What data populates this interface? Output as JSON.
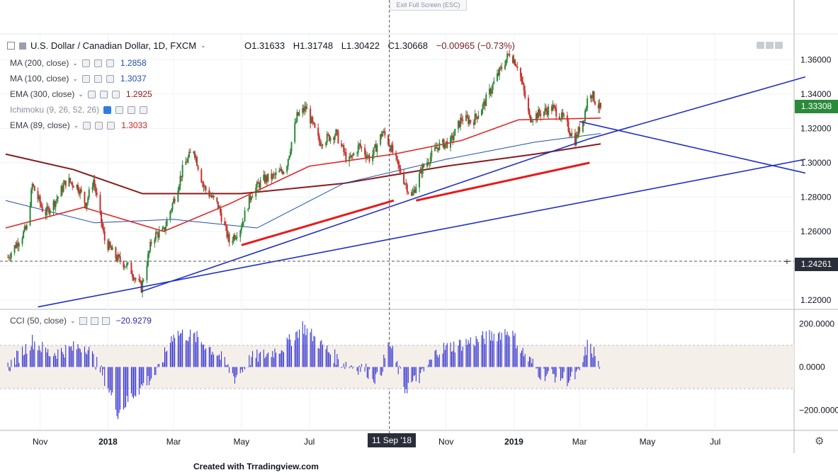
{
  "exit_label": "Exit Full Screen (ESC)",
  "header": {
    "symbol": "U.S. Dollar / Canadian Dollar, 1D, FXCM",
    "open": "O1.31633",
    "high": "H1.31748",
    "low": "L1.30422",
    "close": "C1.30668",
    "change": "−0.00965 (−0.73%)"
  },
  "studies": [
    {
      "name": "MA (200, close)",
      "value": "1.2858",
      "color": "#1f4fb0"
    },
    {
      "name": "MA (100, close)",
      "value": "1.3037",
      "color": "#1f4fb0"
    },
    {
      "name": "EMA (300, close)",
      "value": "1.2925",
      "color": "#8b1a1a"
    },
    {
      "name": "Ichimoku (9, 26, 52, 26)",
      "value": "",
      "color": "#1f4fb0"
    },
    {
      "name": "EMA (89, close)",
      "value": "1.3033",
      "color": "#d42020"
    }
  ],
  "cci": {
    "name": "CCI (50, close)",
    "value": "−20.9279",
    "color": "#2a2aa8"
  },
  "price_tags": {
    "last": "1.33308",
    "cursor": "1.24261"
  },
  "crosshair_date": "11 Sep '18",
  "footer": "Created with Trradingview.com",
  "colors": {
    "up": "#2a8a3a",
    "down": "#c9302c",
    "ma_blue": "#1f4fb0",
    "ema_red": "#e52222",
    "ema_dark": "#8b1a1a",
    "trend_blue": "#1f2fc8",
    "cci": "#2a2ad0"
  },
  "chart_data": {
    "type": "candlestick",
    "title": "U.S. Dollar / Canadian Dollar, 1D, FXCM",
    "x_ticks": [
      "Nov",
      "2018",
      "Mar",
      "May",
      "Jul",
      "11 Sep '18",
      "Nov",
      "2019",
      "Mar",
      "May",
      "Jul"
    ],
    "y_ticks": [
      "1.36000",
      "1.34000",
      "1.32000",
      "1.30000",
      "1.28000",
      "1.26000",
      "1.24000",
      "1.22000"
    ],
    "ylim": [
      1.215,
      1.375
    ],
    "cci_ticks": [
      "200.0000",
      "0.0000",
      "−200.0000"
    ],
    "cci_ylim": [
      -290,
      260
    ],
    "cci_band": [
      -100,
      100
    ],
    "price_path": [
      [
        "2017-10-10",
        1.252
      ],
      [
        "2017-10-20",
        1.262
      ],
      [
        "2017-10-25",
        1.287
      ],
      [
        "2017-11-05",
        1.27
      ],
      [
        "2017-11-15",
        1.278
      ],
      [
        "2017-11-25",
        1.29
      ],
      [
        "2017-12-05",
        1.286
      ],
      [
        "2017-12-12",
        1.276
      ],
      [
        "2017-12-19",
        1.29
      ],
      [
        "2017-12-29",
        1.255
      ],
      [
        "2018-01-08",
        1.245
      ],
      [
        "2018-01-20",
        1.239
      ],
      [
        "2018-01-31",
        1.227
      ],
      [
        "2018-02-10",
        1.257
      ],
      [
        "2018-02-20",
        1.26
      ],
      [
        "2018-03-01",
        1.278
      ],
      [
        "2018-03-10",
        1.298
      ],
      [
        "2018-03-19",
        1.308
      ],
      [
        "2018-03-28",
        1.286
      ],
      [
        "2018-04-10",
        1.275
      ],
      [
        "2018-04-20",
        1.254
      ],
      [
        "2018-04-30",
        1.262
      ],
      [
        "2018-05-10",
        1.282
      ],
      [
        "2018-05-20",
        1.29
      ],
      [
        "2018-05-30",
        1.292
      ],
      [
        "2018-06-10",
        1.297
      ],
      [
        "2018-06-20",
        1.327
      ],
      [
        "2018-06-28",
        1.332
      ],
      [
        "2018-07-10",
        1.312
      ],
      [
        "2018-07-25",
        1.317
      ],
      [
        "2018-08-05",
        1.3
      ],
      [
        "2018-08-15",
        1.31
      ],
      [
        "2018-08-25",
        1.302
      ],
      [
        "2018-09-05",
        1.318
      ],
      [
        "2018-09-11",
        1.311
      ],
      [
        "2018-09-20",
        1.296
      ],
      [
        "2018-10-01",
        1.28
      ],
      [
        "2018-10-10",
        1.296
      ],
      [
        "2018-10-25",
        1.31
      ],
      [
        "2018-11-05",
        1.312
      ],
      [
        "2018-11-15",
        1.326
      ],
      [
        "2018-11-25",
        1.324
      ],
      [
        "2018-12-05",
        1.334
      ],
      [
        "2018-12-15",
        1.348
      ],
      [
        "2018-12-28",
        1.364
      ],
      [
        "2019-01-05",
        1.356
      ],
      [
        "2019-01-15",
        1.326
      ],
      [
        "2019-01-25",
        1.329
      ],
      [
        "2019-02-05",
        1.332
      ],
      [
        "2019-02-15",
        1.325
      ],
      [
        "2019-02-25",
        1.313
      ],
      [
        "2019-03-05",
        1.327
      ],
      [
        "2019-03-10",
        1.343
      ],
      [
        "2019-03-15",
        1.336
      ],
      [
        "2019-03-20",
        1.331
      ]
    ],
    "overlays": {
      "ma200": [
        [
          "2017-10-01",
          1.305
        ],
        [
          "2017-12-01",
          1.296
        ],
        [
          "2018-02-01",
          1.282
        ],
        [
          "2018-05-01",
          1.282
        ],
        [
          "2018-08-01",
          1.288
        ],
        [
          "2018-11-01",
          1.298
        ],
        [
          "2019-01-20",
          1.305
        ],
        [
          "2019-03-20",
          1.311
        ]
      ],
      "ma100": [
        [
          "2017-10-01",
          1.278
        ],
        [
          "2017-12-20",
          1.265
        ],
        [
          "2018-03-01",
          1.267
        ],
        [
          "2018-05-15",
          1.262
        ],
        [
          "2018-08-01",
          1.288
        ],
        [
          "2018-11-01",
          1.302
        ],
        [
          "2019-01-20",
          1.312
        ],
        [
          "2019-03-20",
          1.317
        ]
      ],
      "ema89": [
        [
          "2017-10-01",
          1.262
        ],
        [
          "2017-12-10",
          1.274
        ],
        [
          "2018-02-20",
          1.26
        ],
        [
          "2018-04-20",
          1.276
        ],
        [
          "2018-07-01",
          1.298
        ],
        [
          "2018-09-15",
          1.305
        ],
        [
          "2018-11-15",
          1.313
        ],
        [
          "2019-01-05",
          1.325
        ],
        [
          "2019-03-20",
          1.326
        ]
      ]
    },
    "trendlines_red": [
      [
        [
          "2018-05-01",
          1.252
        ],
        [
          "2018-09-15",
          1.278
        ]
      ],
      [
        [
          "2018-10-05",
          1.278
        ],
        [
          "2019-03-10",
          1.3
        ]
      ]
    ],
    "trendlines_blue": [
      [
        [
          "2018-01-31",
          1.225
        ],
        [
          "2019-03-10",
          1.314
        ],
        [
          "2019-09-20",
          1.35
        ]
      ],
      [
        [
          "2017-10-30",
          1.216
        ],
        [
          "2019-09-20",
          1.302
        ]
      ],
      [
        [
          "2019-03-01",
          1.324
        ],
        [
          "2019-09-20",
          1.294
        ]
      ]
    ],
    "cci_values_path": [
      [
        "2017-10-05",
        10
      ],
      [
        "2017-10-25",
        120
      ],
      [
        "2017-11-10",
        60
      ],
      [
        "2017-11-25",
        80
      ],
      [
        "2017-12-12",
        100
      ],
      [
        "2017-12-28",
        -40
      ],
      [
        "2018-01-10",
        -210
      ],
      [
        "2018-01-25",
        -120
      ],
      [
        "2018-02-15",
        -20
      ],
      [
        "2018-03-01",
        160
      ],
      [
        "2018-03-20",
        140
      ],
      [
        "2018-04-10",
        60
      ],
      [
        "2018-04-25",
        -50
      ],
      [
        "2018-05-10",
        40
      ],
      [
        "2018-05-25",
        60
      ],
      [
        "2018-06-10",
        100
      ],
      [
        "2018-06-25",
        190
      ],
      [
        "2018-07-10",
        110
      ],
      [
        "2018-07-30",
        20
      ],
      [
        "2018-08-20",
        -10
      ],
      [
        "2018-09-01",
        -60
      ],
      [
        "2018-09-11",
        110
      ],
      [
        "2018-09-25",
        -100
      ],
      [
        "2018-10-10",
        -40
      ],
      [
        "2018-10-25",
        80
      ],
      [
        "2018-11-10",
        100
      ],
      [
        "2018-11-25",
        120
      ],
      [
        "2018-12-10",
        140
      ],
      [
        "2018-12-28",
        170
      ],
      [
        "2019-01-10",
        60
      ],
      [
        "2019-01-25",
        -30
      ],
      [
        "2019-02-10",
        -40
      ],
      [
        "2019-02-20",
        -60
      ],
      [
        "2019-03-01",
        -30
      ],
      [
        "2019-03-08",
        100
      ],
      [
        "2019-03-15",
        60
      ],
      [
        "2019-03-20",
        -20
      ]
    ]
  }
}
